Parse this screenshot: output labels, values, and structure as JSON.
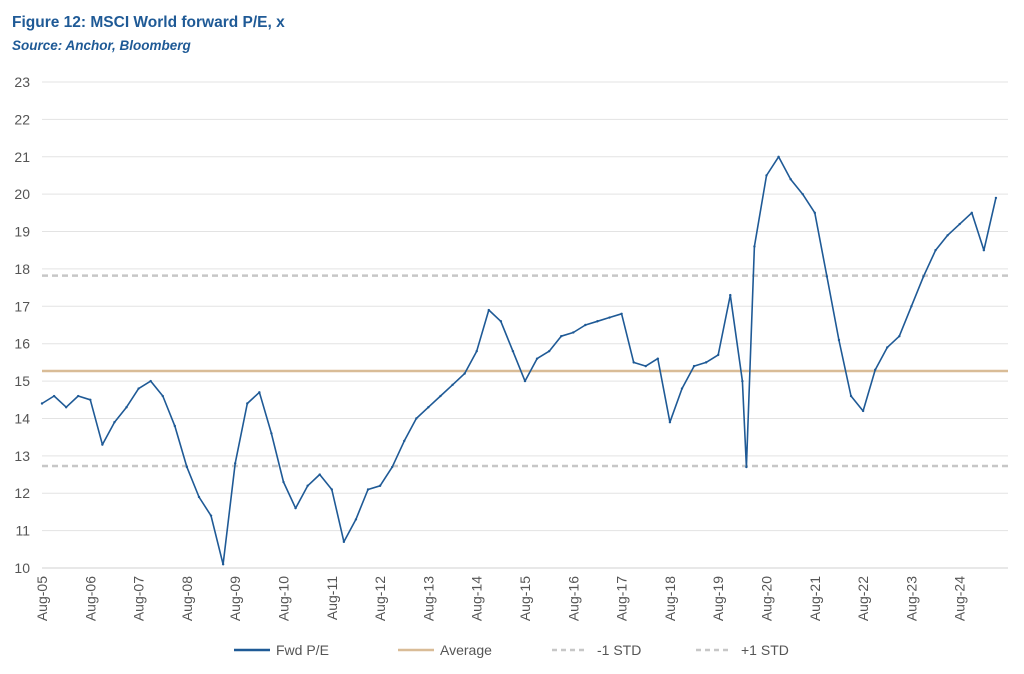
{
  "header": {
    "title": "Figure 12: MSCI World forward P/E, x",
    "subtitle": "Source: Anchor, Bloomberg"
  },
  "colors": {
    "series": "#1f5a96",
    "average": "#d9bc97",
    "std": "#c7c7c7",
    "grid": "#e3e3e3"
  },
  "chart_data": {
    "type": "line",
    "title": "Figure 12: MSCI World forward P/E, x",
    "xlabel": "",
    "ylabel": "",
    "ylim": [
      10,
      23
    ],
    "yticks": [
      10,
      11,
      12,
      13,
      14,
      15,
      16,
      17,
      18,
      19,
      20,
      21,
      22,
      23
    ],
    "xlim": [
      "2005-08",
      "2025-08"
    ],
    "xticks": [
      "Aug-05",
      "Aug-06",
      "Aug-07",
      "Aug-08",
      "Aug-09",
      "Aug-10",
      "Aug-11",
      "Aug-12",
      "Aug-13",
      "Aug-14",
      "Aug-15",
      "Aug-16",
      "Aug-17",
      "Aug-18",
      "Aug-19",
      "Aug-20",
      "Aug-21",
      "Aug-22",
      "Aug-23",
      "Aug-24"
    ],
    "grid": true,
    "legend_position": "bottom",
    "series": [
      {
        "name": "Fwd P/E",
        "x": [
          "2005-08",
          "2005-11",
          "2006-02",
          "2006-05",
          "2006-08",
          "2006-11",
          "2007-02",
          "2007-05",
          "2007-08",
          "2007-11",
          "2008-02",
          "2008-05",
          "2008-08",
          "2008-11",
          "2009-02",
          "2009-05",
          "2009-08",
          "2009-11",
          "2010-02",
          "2010-05",
          "2010-08",
          "2010-11",
          "2011-02",
          "2011-05",
          "2011-08",
          "2011-11",
          "2012-02",
          "2012-05",
          "2012-08",
          "2012-11",
          "2013-02",
          "2013-05",
          "2013-08",
          "2013-11",
          "2014-02",
          "2014-05",
          "2014-08",
          "2014-11",
          "2015-02",
          "2015-05",
          "2015-08",
          "2015-11",
          "2016-02",
          "2016-05",
          "2016-08",
          "2016-11",
          "2017-02",
          "2017-05",
          "2017-08",
          "2017-11",
          "2018-02",
          "2018-05",
          "2018-08",
          "2018-11",
          "2019-02",
          "2019-05",
          "2019-08",
          "2019-11",
          "2020-02",
          "2020-03",
          "2020-05",
          "2020-08",
          "2020-11",
          "2021-02",
          "2021-05",
          "2021-08",
          "2021-11",
          "2022-02",
          "2022-05",
          "2022-08",
          "2022-11",
          "2023-02",
          "2023-05",
          "2023-08",
          "2023-11",
          "2024-02",
          "2024-05",
          "2024-08",
          "2024-11",
          "2025-02",
          "2025-05"
        ],
        "values": [
          14.4,
          14.6,
          14.3,
          14.6,
          14.5,
          13.3,
          13.9,
          14.3,
          14.8,
          15.0,
          14.6,
          13.8,
          12.7,
          11.9,
          11.4,
          10.1,
          12.8,
          14.4,
          14.7,
          13.6,
          12.3,
          11.6,
          12.2,
          12.5,
          12.1,
          10.7,
          11.3,
          12.1,
          12.2,
          12.7,
          13.4,
          14.0,
          14.3,
          14.6,
          14.9,
          15.2,
          15.8,
          16.9,
          16.6,
          15.8,
          15.0,
          15.6,
          15.8,
          16.2,
          16.3,
          16.5,
          16.6,
          16.7,
          16.8,
          15.5,
          15.4,
          15.6,
          13.9,
          14.8,
          15.4,
          15.5,
          15.7,
          17.3,
          15.0,
          12.7,
          18.6,
          20.5,
          21.0,
          20.4,
          20.0,
          19.5,
          17.8,
          16.1,
          14.6,
          14.2,
          15.3,
          15.9,
          16.2,
          17.0,
          17.8,
          18.5,
          18.9,
          19.2,
          19.5,
          18.5,
          19.9
        ]
      },
      {
        "name": "Average",
        "values": [
          15.27
        ]
      },
      {
        "name": "-1 STD",
        "values": [
          12.73
        ]
      },
      {
        "name": "+1 STD",
        "values": [
          17.82
        ]
      }
    ]
  }
}
